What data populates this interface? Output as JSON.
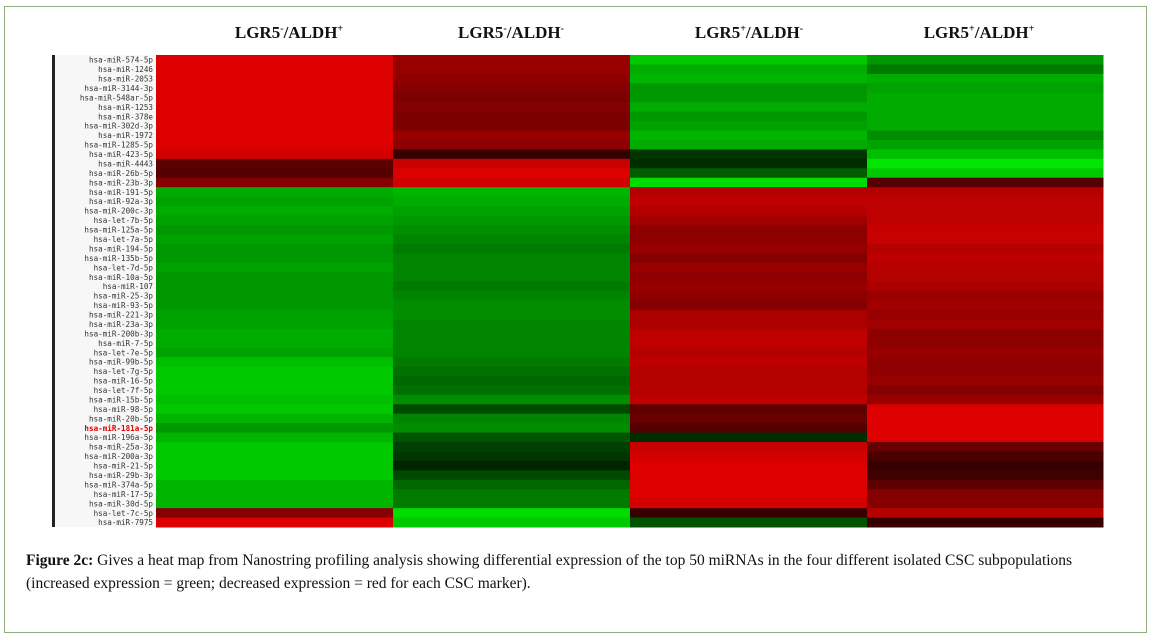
{
  "chart_data": {
    "type": "heatmap",
    "columns": [
      {
        "base": "LGR5",
        "lgr_sign": "-",
        "aldh": "ALDH",
        "aldh_sign": "+"
      },
      {
        "base": "LGR5",
        "lgr_sign": "-",
        "aldh": "ALDH",
        "aldh_sign": "-"
      },
      {
        "base": "LGR5",
        "lgr_sign": "+",
        "aldh": "ALDH",
        "aldh_sign": "-"
      },
      {
        "base": "LGR5",
        "lgr_sign": "+",
        "aldh": "ALDH",
        "aldh_sign": "+"
      }
    ],
    "rows": [
      "hsa-miR-574-5p",
      "hsa-miR-1246",
      "hsa-miR-2053",
      "hsa-miR-3144-3p",
      "hsa-miR-548ar-5p",
      "hsa-miR-1253",
      "hsa-miR-378e",
      "hsa-miR-302d-3p",
      "hsa-miR-1972",
      "hsa-miR-1285-5p",
      "hsa-miR-423-5p",
      "hsa-miR-4443",
      "hsa-miR-26b-5p",
      "hsa-miR-23b-3p",
      "hsa-miR-191-5p",
      "hsa-miR-92a-3p",
      "hsa-miR-200c-3p",
      "hsa-let-7b-5p",
      "hsa-miR-125a-5p",
      "hsa-let-7a-5p",
      "hsa-miR-194-5p",
      "hsa-miR-135b-5p",
      "hsa-let-7d-5p",
      "hsa-miR-10a-5p",
      "hsa-miR-107",
      "hsa-miR-25-3p",
      "hsa-miR-93-5p",
      "hsa-miR-221-3p",
      "hsa-miR-23a-3p",
      "hsa-miR-200b-3p",
      "hsa-miR-7-5p",
      "hsa-let-7e-5p",
      "hsa-miR-99b-5p",
      "hsa-let-7g-5p",
      "hsa-miR-16-5p",
      "hsa-let-7f-5p",
      "hsa-miR-15b-5p",
      "hsa-miR-98-5p",
      "hsa-miR-20b-5p",
      "hsa-miR-181a-5p",
      "hsa-miR-196a-5p",
      "hsa-miR-25a-3p",
      "hsa-miR-200a-3p",
      "hsa-miR-21-5p",
      "hsa-miR-29b-3p",
      "hsa-miR-374a-5p",
      "hsa-miR-17-5p",
      "hsa-miR-30d-5p",
      "hsa-let-7c-5p",
      "hsa-miR-7975"
    ],
    "highlighted_row": "hsa-miR-181a-5p",
    "color_scale": {
      "increased": "#00c000",
      "decreased": "#e00000",
      "neutral": "#000000"
    },
    "values": [
      [
        -0.95,
        -0.6,
        0.85,
        0.6
      ],
      [
        -0.95,
        -0.6,
        0.7,
        0.45
      ],
      [
        -0.95,
        -0.55,
        0.75,
        0.7
      ],
      [
        -0.95,
        -0.5,
        0.6,
        0.65
      ],
      [
        -0.95,
        -0.45,
        0.6,
        0.7
      ],
      [
        -0.95,
        -0.5,
        0.7,
        0.7
      ],
      [
        -0.95,
        -0.45,
        0.6,
        0.7
      ],
      [
        -0.95,
        -0.45,
        0.65,
        0.7
      ],
      [
        -0.95,
        -0.6,
        0.75,
        0.55
      ],
      [
        -0.95,
        -0.55,
        0.7,
        0.65
      ],
      [
        -0.9,
        -0.1,
        0.1,
        0.8
      ],
      [
        -0.3,
        -0.85,
        0.05,
        1.0
      ],
      [
        -0.25,
        -0.95,
        0.3,
        0.85
      ],
      [
        -0.5,
        -0.9,
        0.95,
        -0.25
      ],
      [
        0.7,
        0.75,
        -0.75,
        -0.75
      ],
      [
        0.65,
        0.7,
        -0.8,
        -0.8
      ],
      [
        0.7,
        0.65,
        -0.75,
        -0.8
      ],
      [
        0.65,
        0.6,
        -0.65,
        -0.8
      ],
      [
        0.6,
        0.55,
        -0.55,
        -0.85
      ],
      [
        0.65,
        0.5,
        -0.55,
        -0.85
      ],
      [
        0.6,
        0.45,
        -0.6,
        -0.75
      ],
      [
        0.6,
        0.5,
        -0.5,
        -0.8
      ],
      [
        0.65,
        0.5,
        -0.6,
        -0.75
      ],
      [
        0.6,
        0.5,
        -0.55,
        -0.75
      ],
      [
        0.6,
        0.45,
        -0.6,
        -0.7
      ],
      [
        0.6,
        0.5,
        -0.55,
        -0.6
      ],
      [
        0.6,
        0.55,
        -0.5,
        -0.65
      ],
      [
        0.65,
        0.55,
        -0.7,
        -0.6
      ],
      [
        0.65,
        0.5,
        -0.7,
        -0.65
      ],
      [
        0.7,
        0.5,
        -0.8,
        -0.55
      ],
      [
        0.7,
        0.5,
        -0.8,
        -0.55
      ],
      [
        0.65,
        0.5,
        -0.75,
        -0.6
      ],
      [
        0.8,
        0.45,
        -0.8,
        -0.55
      ],
      [
        0.85,
        0.4,
        -0.75,
        -0.55
      ],
      [
        0.85,
        0.35,
        -0.75,
        -0.6
      ],
      [
        0.85,
        0.4,
        -0.75,
        -0.5
      ],
      [
        0.8,
        0.55,
        -0.8,
        -0.6
      ],
      [
        0.85,
        0.2,
        -0.3,
        -0.95
      ],
      [
        0.75,
        0.5,
        -0.35,
        -0.95
      ],
      [
        0.6,
        0.55,
        -0.25,
        -0.95
      ],
      [
        0.75,
        0.25,
        0.05,
        -0.95
      ],
      [
        0.85,
        0.15,
        -0.85,
        -0.35
      ],
      [
        0.85,
        0.1,
        -0.9,
        -0.2
      ],
      [
        0.85,
        0.0,
        -0.95,
        -0.1
      ],
      [
        0.85,
        0.2,
        -0.95,
        -0.15
      ],
      [
        0.75,
        0.35,
        -0.95,
        -0.3
      ],
      [
        0.75,
        0.45,
        -0.95,
        -0.5
      ],
      [
        0.75,
        0.45,
        -0.9,
        -0.5
      ],
      [
        -0.5,
        0.95,
        -0.1,
        -0.75
      ],
      [
        -0.95,
        0.85,
        0.25,
        -0.1
      ]
    ]
  },
  "caption": {
    "label": "Figure 2c:",
    "text": " Gives a heat map from Nanostring profiling analysis showing differential expression of the top 50 miRNAs in the four different isolated CSC subpopulations (increased expression = green; decreased expression = red for each CSC marker)."
  }
}
